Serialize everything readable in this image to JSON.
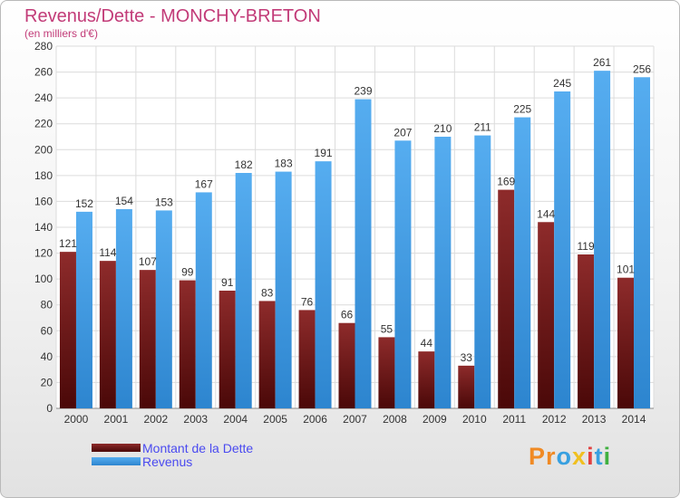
{
  "title": "Revenus/Dette - MONCHY-BRETON",
  "subtitle": "(en milliers d'€)",
  "logo": {
    "letters": [
      "P",
      "r",
      "o",
      "x",
      "i",
      "t",
      "i"
    ],
    "colors": [
      "#f08a24",
      "#f08a24",
      "#38a0e0",
      "#f0c020",
      "#e04040",
      "#38a0e0",
      "#40b040"
    ]
  },
  "chart_data": {
    "type": "bar",
    "categories": [
      "2000",
      "2001",
      "2002",
      "2003",
      "2004",
      "2005",
      "2006",
      "2007",
      "2008",
      "2009",
      "2010",
      "2011",
      "2012",
      "2013",
      "2014"
    ],
    "series": [
      {
        "name": "Montant de la Dette",
        "values": [
          121,
          114,
          107,
          99,
          91,
          83,
          76,
          66,
          55,
          44,
          33,
          169,
          144,
          119,
          101
        ],
        "color": "#6b1717"
      },
      {
        "name": "Revenus",
        "values": [
          152,
          154,
          153,
          167,
          182,
          183,
          191,
          239,
          207,
          210,
          211,
          225,
          245,
          261,
          256
        ],
        "color": "#3e9ae2"
      }
    ],
    "ylim": [
      0,
      280
    ],
    "yticks": [
      0,
      20,
      40,
      60,
      80,
      100,
      120,
      140,
      160,
      180,
      200,
      220,
      240,
      260,
      280
    ],
    "grid": true,
    "legend_position": "bottom-left"
  }
}
